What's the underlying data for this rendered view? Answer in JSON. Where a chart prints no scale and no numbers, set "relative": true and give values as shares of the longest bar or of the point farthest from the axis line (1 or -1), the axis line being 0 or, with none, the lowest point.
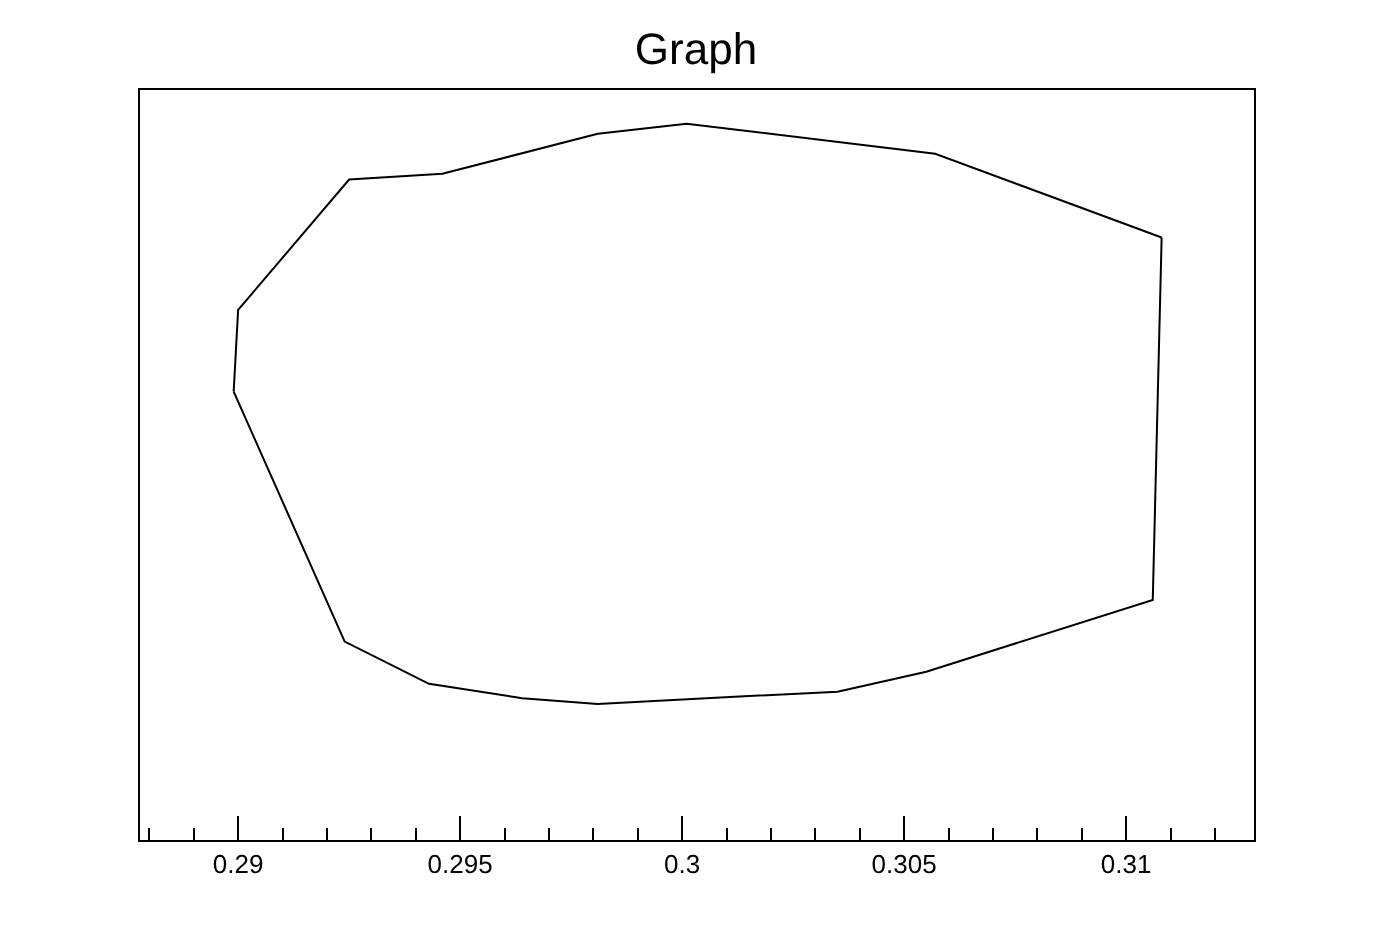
{
  "chart_data": {
    "type": "line",
    "title": "Graph",
    "relative": true,
    "marker": "none",
    "line_style": "solid",
    "grid": false,
    "series": [
      {
        "color": "#000000",
        "x": [
          0.2899,
          0.29,
          0.2925,
          0.2946,
          0.2981,
          0.3001,
          0.3057,
          0.3108
        ],
        "values": [
          0.626,
          0.74,
          0.922,
          0.93,
          0.986,
          1,
          0.958,
          0.841
        ]
      },
      {
        "color": "#000000",
        "x": [
          0.2899,
          0.2924,
          0.2943,
          0.2964,
          0.2981,
          0.3015,
          0.3035,
          0.3055,
          0.3106,
          0.3108
        ],
        "values": [
          0.626,
          0.277,
          0.218,
          0.198,
          0.19,
          0.201,
          0.207,
          0.235,
          0.335,
          0.841
        ]
      }
    ],
    "xlim": [
      0.28779,
      0.31288
    ],
    "xticks": [
      0.29,
      0.295,
      0.3,
      0.305,
      0.31
    ]
  }
}
